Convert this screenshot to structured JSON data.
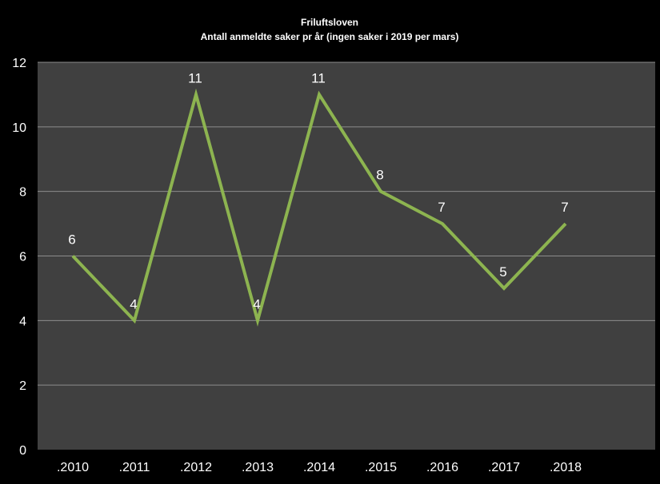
{
  "chart_data": {
    "type": "line",
    "title": "Friluftsloven",
    "subtitle": "Antall anmeldte saker pr år (ingen saker i 2019 per mars)",
    "categories": [
      ".2010",
      ".2011",
      ".2012",
      ".2013",
      ".2014",
      ".2015",
      ".2016",
      ".2017",
      ".2018"
    ],
    "values": [
      6,
      4,
      11,
      4,
      11,
      8,
      7,
      5,
      7
    ],
    "ylim": [
      0,
      12
    ],
    "yticks": [
      "0",
      "2",
      "4",
      "6",
      "8",
      "10",
      "12"
    ],
    "grid": true,
    "legend": "none",
    "colors": {
      "background": "#000000",
      "plot_area": "#404040",
      "gridline": "#8c8c8c",
      "line": "#8db450",
      "text": "#ffffff"
    }
  }
}
